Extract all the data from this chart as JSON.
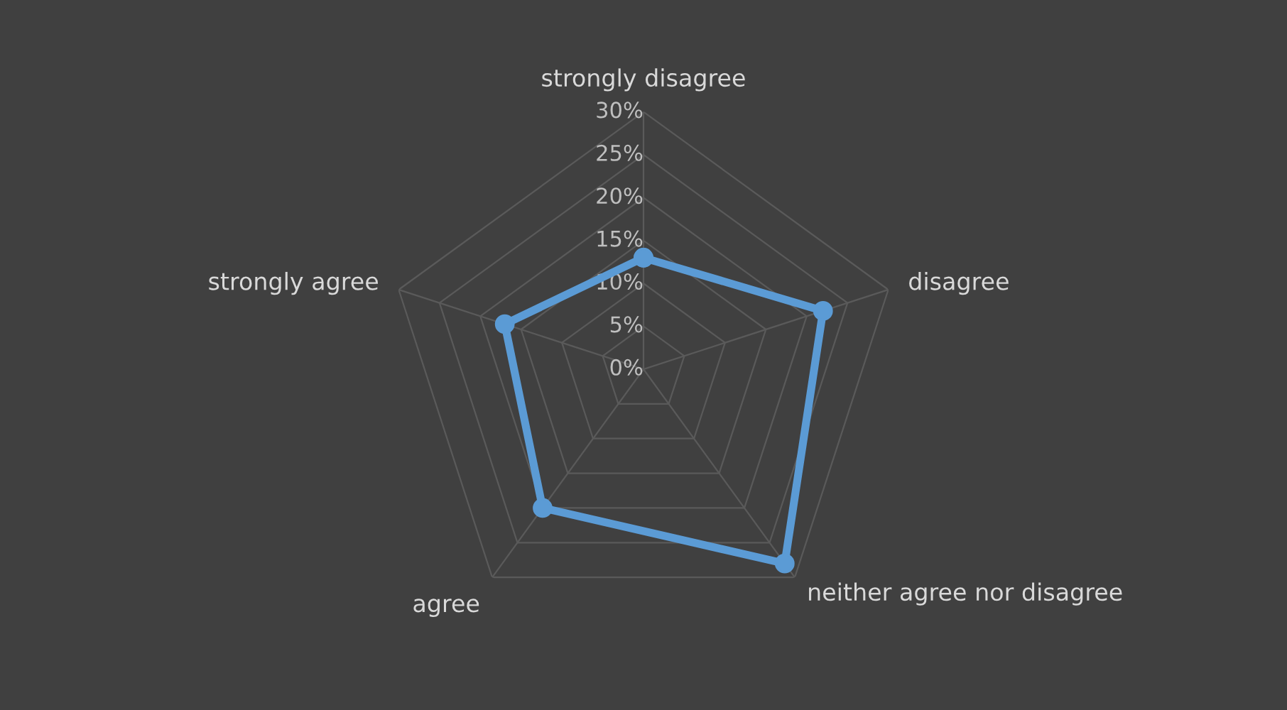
{
  "chart_data": {
    "type": "radar",
    "categories": [
      "strongly disagree",
      "disagree",
      "neither agree nor disagree",
      "agree",
      "strongly agree"
    ],
    "series": [
      {
        "color": "#5b9bd5",
        "values": [
          13,
          22,
          28,
          20,
          17
        ]
      }
    ],
    "ylim": [
      0,
      30
    ],
    "yticks": [
      {
        "value": 0,
        "label": "0%"
      },
      {
        "value": 5,
        "label": "5%"
      },
      {
        "value": 10,
        "label": "10%"
      },
      {
        "value": 15,
        "label": "15%"
      },
      {
        "value": 20,
        "label": "20%"
      },
      {
        "value": 25,
        "label": "25%"
      },
      {
        "value": 30,
        "label": "30%"
      }
    ],
    "grid": true,
    "marker": "circle",
    "line_style": "solid"
  }
}
